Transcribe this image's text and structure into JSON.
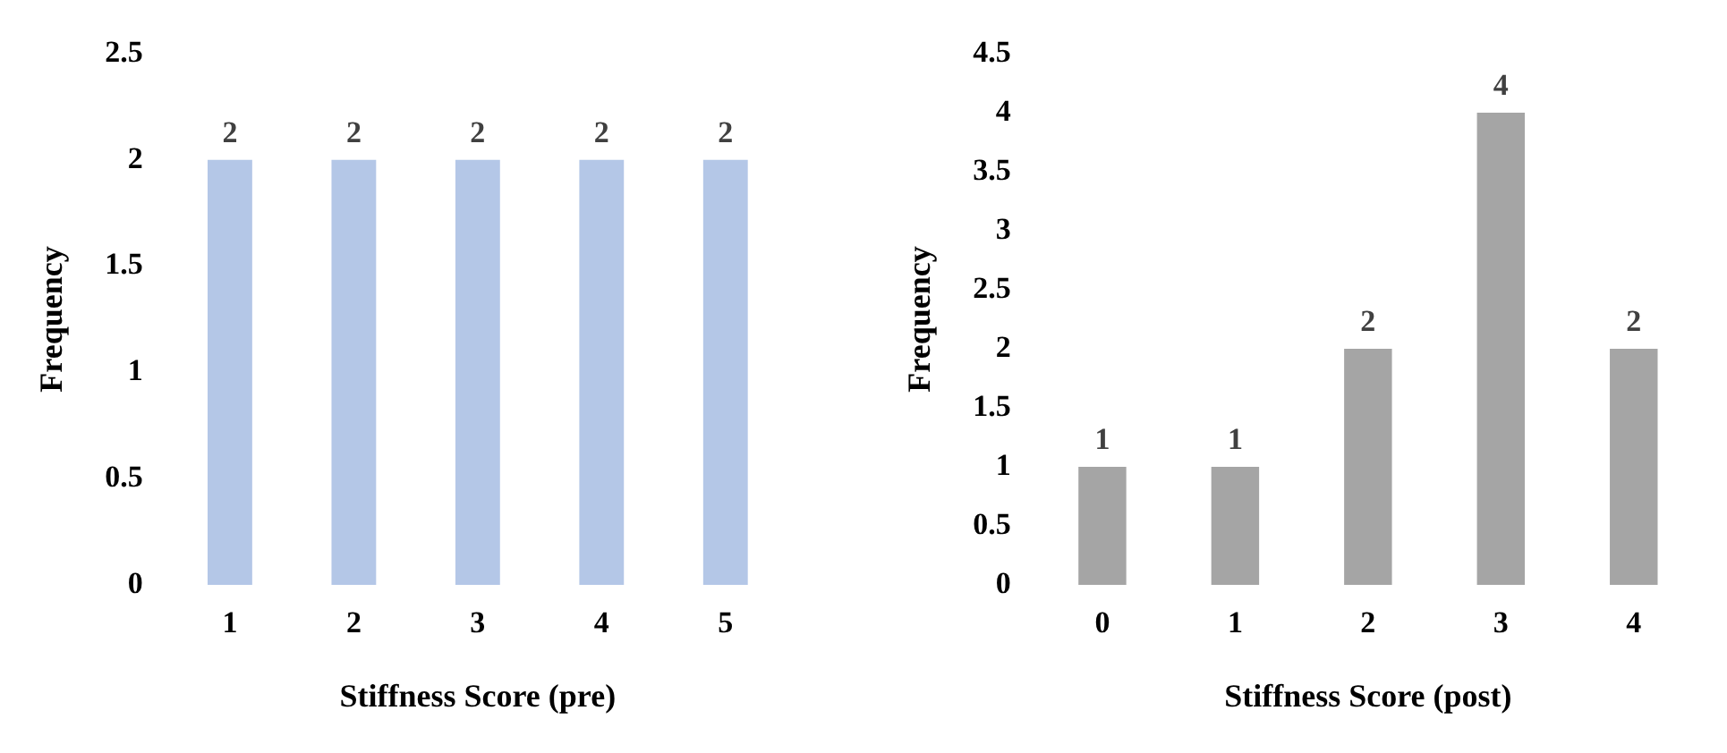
{
  "chart_data": [
    {
      "type": "bar",
      "xlabel": "Stiffness Score (pre)",
      "ylabel": "Frequency",
      "categories": [
        "1",
        "2",
        "3",
        "4",
        "5"
      ],
      "values": [
        2,
        2,
        2,
        2,
        2
      ],
      "color": "#b4c7e7",
      "ylim": [
        0,
        2.5
      ],
      "yticks": [
        0,
        0.5,
        1,
        1.5,
        2,
        2.5
      ],
      "grid": false,
      "legend": false,
      "data_labels": true
    },
    {
      "type": "bar",
      "xlabel": "Stiffness Score (post)",
      "ylabel": "Frequency",
      "categories": [
        "0",
        "1",
        "2",
        "3",
        "4"
      ],
      "values": [
        1,
        1,
        2,
        4,
        2
      ],
      "color": "#a5a5a5",
      "ylim": [
        0,
        4.5
      ],
      "yticks": [
        0,
        0.5,
        1,
        1.5,
        2,
        2.5,
        3,
        3.5,
        4,
        4.5
      ],
      "grid": false,
      "legend": false,
      "data_labels": true
    }
  ]
}
